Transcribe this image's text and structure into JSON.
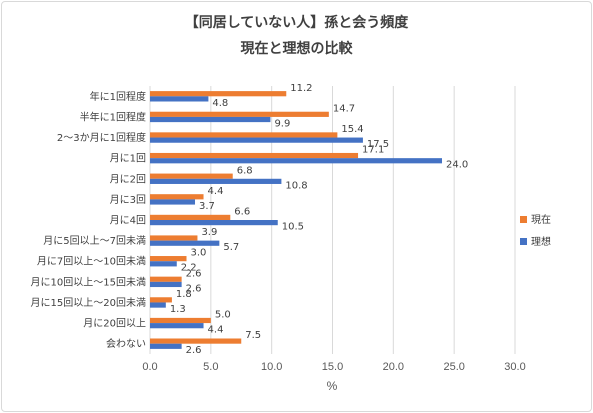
{
  "chart_data": {
    "type": "bar",
    "orientation": "horizontal",
    "title": "【同居していない人】孫と会う頻度",
    "subtitle": "現在と理想の比較",
    "xlabel": "%",
    "ylabel": "",
    "xlim": [
      0,
      30
    ],
    "xticks": [
      "0.0",
      "5.0",
      "10.0",
      "15.0",
      "20.0",
      "25.0",
      "30.0"
    ],
    "grid": true,
    "legend_position": "right",
    "categories": [
      "年に1回程度",
      "半年に1回程度",
      "2～3か月に1回程度",
      "月に1回",
      "月に2回",
      "月に3回",
      "月に4回",
      "月に5回以上～7回未満",
      "月に7回以上～10回未満",
      "月に10回以上～15回未満",
      "月に15回以上～20回未満",
      "月に20回以上",
      "会わない"
    ],
    "series": [
      {
        "name": "現在",
        "color": "#ed7d31",
        "values": [
          11.2,
          14.7,
          15.4,
          17.1,
          6.8,
          4.4,
          6.6,
          3.9,
          3.0,
          2.6,
          1.8,
          5.0,
          7.5
        ]
      },
      {
        "name": "理想",
        "color": "#4472c4",
        "values": [
          4.8,
          9.9,
          17.5,
          24.0,
          10.8,
          3.7,
          10.5,
          5.7,
          2.2,
          2.6,
          1.3,
          4.4,
          2.6
        ]
      }
    ]
  }
}
